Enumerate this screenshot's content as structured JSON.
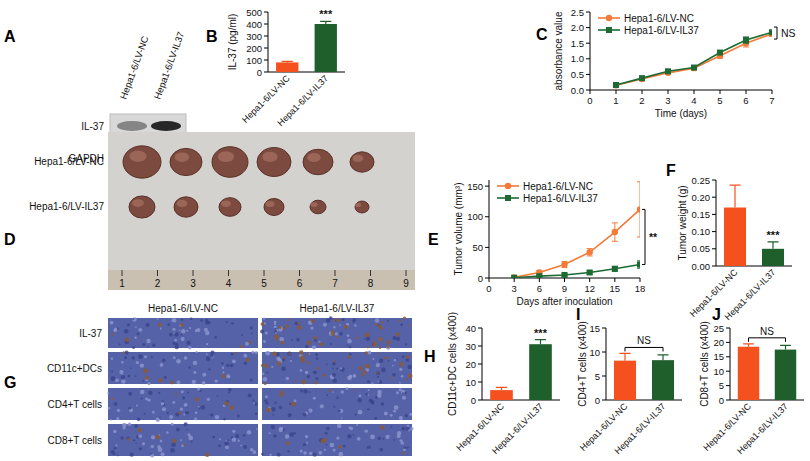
{
  "chart_data": [
    {
      "panel": "A",
      "type": "blot",
      "lanes": [
        "Hepa1-6/LV-NC",
        "Hepa1-6/LV-IL37"
      ],
      "rows": [
        "IL-37",
        "GAPDH"
      ]
    },
    {
      "panel": "B",
      "type": "bar",
      "y_label": "IL-37 (pg/ml)",
      "categories": [
        "Hepa1-6/LV-NC",
        "Hepa1-6/LV-IL37"
      ],
      "values": [
        80,
        400
      ],
      "errors": [
        8,
        22
      ],
      "colors": [
        "#f4511e",
        "#1e5f2c"
      ],
      "ylim": [
        0,
        500
      ],
      "yticks": [
        0,
        100,
        200,
        300,
        400,
        500
      ],
      "annotation": "***"
    },
    {
      "panel": "C",
      "type": "line",
      "x_label": "Time (days)",
      "y_label": "absorbance value",
      "x": [
        1,
        2,
        3,
        4,
        5,
        6,
        7
      ],
      "series": [
        {
          "name": "Hepa1-6/LV-NC",
          "color": "#f47a3a",
          "marker": "circle",
          "values": [
            0.15,
            0.35,
            0.55,
            0.7,
            1.1,
            1.5,
            1.8
          ],
          "errors": [
            0.02,
            0.03,
            0.04,
            0.04,
            0.08,
            0.12,
            0.08
          ]
        },
        {
          "name": "Hepa1-6/LV-IL37",
          "color": "#1d6a32",
          "marker": "square",
          "values": [
            0.16,
            0.38,
            0.6,
            0.72,
            1.2,
            1.6,
            1.85
          ],
          "errors": [
            0.02,
            0.03,
            0.04,
            0.04,
            0.06,
            0.1,
            0.06
          ]
        }
      ],
      "xlim": [
        0,
        7
      ],
      "xticks": [
        0,
        1,
        2,
        3,
        4,
        5,
        6,
        7
      ],
      "ylim": [
        0,
        2.5
      ],
      "yticks": [
        {
          "value": 0,
          "label": "0.0"
        },
        {
          "value": 0.5,
          "label": "0.5"
        },
        {
          "value": 1,
          "label": "1.0"
        },
        {
          "value": 1.5,
          "label": "1.5"
        },
        {
          "value": 2,
          "label": "2.0"
        },
        {
          "value": 2.5,
          "label": "2.5"
        }
      ],
      "legend": "upper left",
      "annotation": "NS"
    },
    {
      "panel": "D",
      "type": "photo",
      "rows": [
        "Hepa1-6/LV-NC",
        "Hepa1-6/LV-IL37"
      ],
      "ruler_labels": [
        "1",
        "2",
        "3",
        "4",
        "5",
        "6",
        "7",
        "8",
        "9"
      ]
    },
    {
      "panel": "E",
      "type": "line",
      "x_label": "Days after inoculation",
      "y_label": "Tumor volume (mm³)",
      "x": [
        3,
        6,
        9,
        12,
        15,
        18
      ],
      "series": [
        {
          "name": "Hepa1-6/LV-NC",
          "color": "#f47a3a",
          "marker": "circle",
          "values": [
            1,
            9,
            22,
            42,
            75,
            112
          ],
          "errors": [
            0.5,
            3,
            5,
            6,
            15,
            45
          ]
        },
        {
          "name": "Hepa1-6/LV-IL37",
          "color": "#1d6a32",
          "marker": "square",
          "values": [
            0.5,
            3,
            5,
            9,
            15,
            22
          ],
          "errors": [
            0.3,
            1,
            2,
            3,
            4,
            6
          ]
        }
      ],
      "xlim": [
        0,
        18
      ],
      "xticks": [
        0,
        3,
        6,
        9,
        12,
        15,
        18
      ],
      "ylim": [
        0,
        160
      ],
      "yticks": [
        0,
        50,
        100,
        150
      ],
      "legend": "upper left",
      "annotation": "**"
    },
    {
      "panel": "F",
      "type": "bar",
      "y_label": "Tumor weight (g)",
      "categories": [
        "Hepa1-6/LV-NC",
        "Hepa1-6/LV-IL37"
      ],
      "values": [
        0.17,
        0.05
      ],
      "errors": [
        0.065,
        0.02
      ],
      "colors": [
        "#f4511e",
        "#1e5f2c"
      ],
      "ylim": [
        0,
        0.25
      ],
      "yticks": [
        {
          "value": 0,
          "label": "0.00"
        },
        {
          "value": 0.05,
          "label": "0.05"
        },
        {
          "value": 0.1,
          "label": "0.10"
        },
        {
          "value": 0.15,
          "label": "0.15"
        },
        {
          "value": 0.2,
          "label": "0.20"
        },
        {
          "value": 0.25,
          "label": "0.25"
        }
      ],
      "annotation": "***"
    },
    {
      "panel": "G",
      "type": "image_grid",
      "columns": [
        "Hepa1-6/LV-NC",
        "Hepa1-6/LV-IL37"
      ],
      "rows": [
        "IL-37",
        "CD11c+DCs",
        "CD4+T cells",
        "CD8+T cells"
      ]
    },
    {
      "panel": "H",
      "type": "bar",
      "y_label": "CD11c+DC cells (x400)",
      "categories": [
        "Hepa1-6/LV-NC",
        "Hepa1-6/LV-IL37"
      ],
      "values": [
        5.5,
        31
      ],
      "errors": [
        1.5,
        2.5
      ],
      "colors": [
        "#f4511e",
        "#1e5f2c"
      ],
      "ylim": [
        0,
        40
      ],
      "yticks": [
        0,
        10,
        20,
        30,
        40
      ],
      "annotation": "***"
    },
    {
      "panel": "I",
      "type": "bar",
      "y_label": "CD4+T cells (x400)",
      "categories": [
        "Hepa1-6/LV-NC",
        "Hepa1-6/LV-IL37"
      ],
      "values": [
        8.2,
        8.3
      ],
      "errors": [
        1.5,
        1.1
      ],
      "colors": [
        "#f4511e",
        "#1e5f2c"
      ],
      "ylim": [
        0,
        15
      ],
      "yticks": [
        0,
        5,
        10,
        15
      ],
      "annotation": "NS"
    },
    {
      "panel": "J",
      "type": "bar",
      "y_label": "CD8+T cells (x400)",
      "categories": [
        "Hepa1-6/LV-NC",
        "Hepa1-6/LV-IL37"
      ],
      "values": [
        18.5,
        17.5
      ],
      "errors": [
        1,
        1.5
      ],
      "colors": [
        "#f4511e",
        "#1e5f2c"
      ],
      "ylim": [
        0,
        25
      ],
      "yticks": [
        0,
        5,
        10,
        15,
        20,
        25
      ],
      "annotation": "NS"
    }
  ]
}
